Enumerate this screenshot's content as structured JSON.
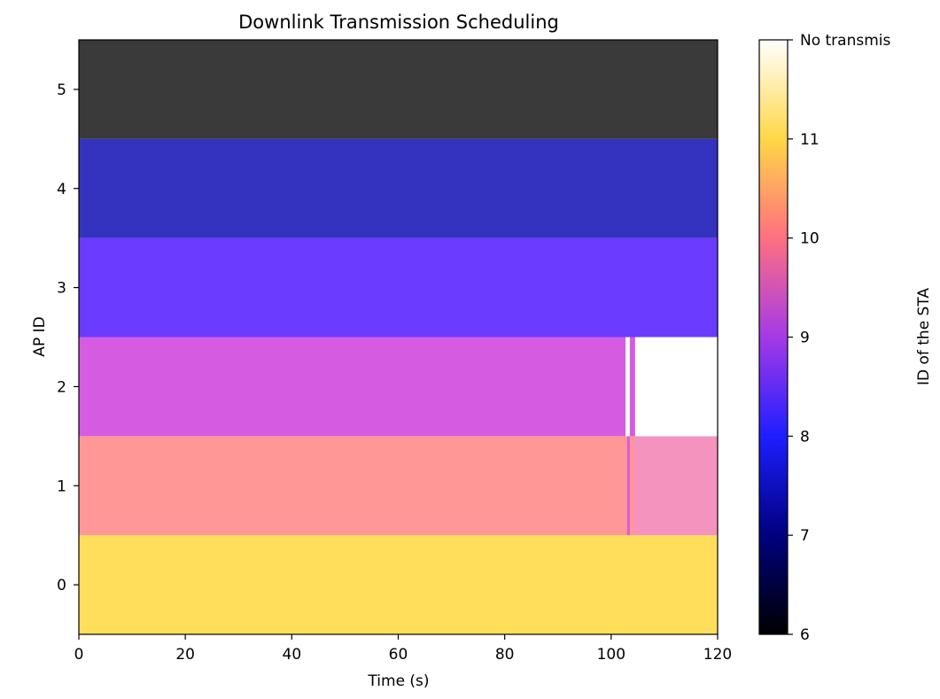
{
  "chart_data": {
    "type": "heatmap",
    "title": "Downlink Transmission Scheduling",
    "xlabel": "Time (s)",
    "ylabel": "AP ID",
    "xlim": [
      0,
      120
    ],
    "ylim": [
      -0.5,
      5.5
    ],
    "x_ticks": [
      0,
      20,
      40,
      60,
      80,
      100,
      120
    ],
    "y_ticks": [
      0,
      1,
      2,
      3,
      4,
      5
    ],
    "grid": false,
    "colorbar": {
      "label": "ID of the STA",
      "colormap": "gnuplot2",
      "range": [
        6,
        12
      ],
      "ticks": [
        6,
        7,
        8,
        9,
        10,
        11
      ],
      "top_tick_label": "No transmis",
      "colors": {
        "6": "#000000",
        "7": "#00007f",
        "8": "#1e1eff",
        "9": "#a43ae6",
        "10": "#ff7080",
        "11": "#ffd746",
        "12": "#ffffff"
      }
    },
    "rows": [
      {
        "ap_id": 0,
        "segments": [
          {
            "start": 0,
            "end": 120,
            "sta": 11.2,
            "color": "#ffde5c"
          }
        ]
      },
      {
        "ap_id": 1,
        "segments": [
          {
            "start": 0,
            "end": 103,
            "sta": 10.3,
            "color": "#ff9797"
          },
          {
            "start": 103,
            "end": 103.5,
            "sta": 9.2,
            "color": "#d65ce0"
          },
          {
            "start": 103.5,
            "end": 104.3,
            "sta": 10.3,
            "color": "#ff9797"
          },
          {
            "start": 104.3,
            "end": 120,
            "sta": 9.8,
            "color": "#f493bd"
          }
        ]
      },
      {
        "ap_id": 2,
        "segments": [
          {
            "start": 0,
            "end": 102.7,
            "sta": 9.1,
            "color": "#d55ce0"
          },
          {
            "start": 102.7,
            "end": 103.5,
            "sta": 12,
            "color": "#ffffff"
          },
          {
            "start": 103.5,
            "end": 104.5,
            "sta": 9.1,
            "color": "#d55ce0"
          },
          {
            "start": 104.5,
            "end": 120,
            "sta": 12,
            "color": "#ffffff"
          }
        ]
      },
      {
        "ap_id": 3,
        "segments": [
          {
            "start": 0,
            "end": 120,
            "sta": 8.3,
            "color": "#6b3bff"
          }
        ]
      },
      {
        "ap_id": 4,
        "segments": [
          {
            "start": 0,
            "end": 120,
            "sta": 7.7,
            "color": "#3333bf"
          }
        ]
      },
      {
        "ap_id": 5,
        "segments": [
          {
            "start": 0,
            "end": 120,
            "sta": 6.2,
            "color": "#3a3a3a"
          }
        ]
      }
    ]
  }
}
